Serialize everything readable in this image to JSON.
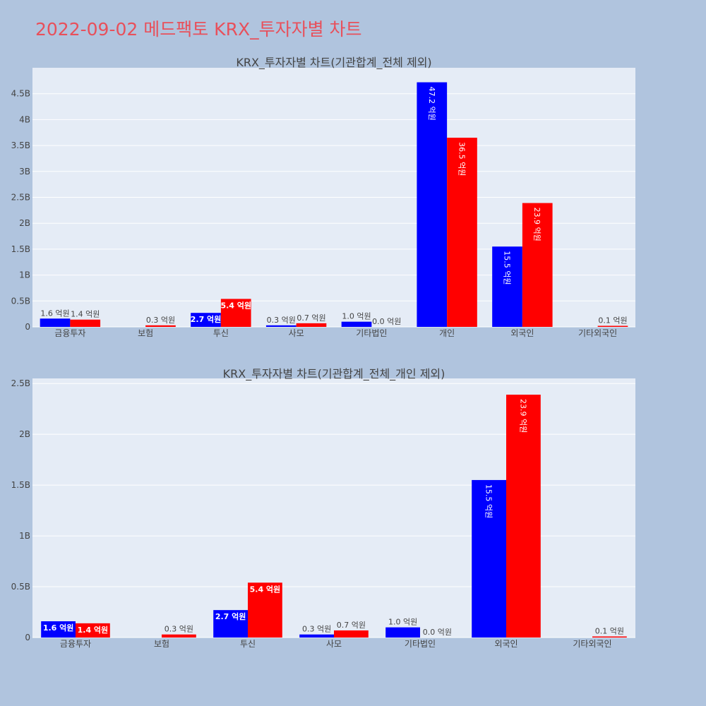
{
  "page": {
    "title": "2022-09-02 메드팩토 KRX_투자자별 차트"
  },
  "colors": {
    "buy": "#0000ff",
    "sell": "#ff0000",
    "plot_bg": "#e5ecf6",
    "page_bg": "#b0c4de",
    "title": "#e8505b"
  },
  "chart_data": [
    {
      "type": "bar",
      "title": "KRX_투자자별 차트(기관합계_전체 제외)",
      "categories": [
        "금융투자",
        "보험",
        "투신",
        "사모",
        "기타법인",
        "개인",
        "외국인",
        "기타외국인"
      ],
      "ylim": [
        0,
        5000000000
      ],
      "yticks": [
        0,
        500000000,
        1000000000,
        1500000000,
        2000000000,
        2500000000,
        3000000000,
        3500000000,
        4000000000,
        4500000000
      ],
      "ytick_labels": [
        "0",
        "0.5B",
        "1B",
        "1.5B",
        "2B",
        "2.5B",
        "3B",
        "3.5B",
        "4B",
        "4.5B"
      ],
      "series": [
        {
          "color": "#0000ff",
          "values": [
            160000000,
            null,
            270000000,
            30000000,
            100000000,
            4720000000,
            1550000000,
            null
          ],
          "labels": [
            "1.6 억원",
            "",
            "2.7 억원",
            "0.3 억원",
            "1.0 억원",
            "47.2 억원",
            "15.5 억원",
            ""
          ]
        },
        {
          "color": "#ff0000",
          "values": [
            140000000,
            30000000,
            540000000,
            70000000,
            0,
            3650000000,
            2390000000,
            10000000
          ],
          "labels": [
            "1.4 억원",
            "0.3 억원",
            "5.4 억원",
            "0.7 억원",
            "0.0 억원",
            "36.5 억원",
            "23.9 억원",
            "0.1 억원"
          ]
        }
      ],
      "grid": true
    },
    {
      "type": "bar",
      "title": "KRX_투자자별 차트(기관합계_전체_개인 제외)",
      "categories": [
        "금융투자",
        "보험",
        "투신",
        "사모",
        "기타법인",
        "외국인",
        "기타외국인"
      ],
      "ylim": [
        0,
        2550000000
      ],
      "yticks": [
        0,
        500000000,
        1000000000,
        1500000000,
        2000000000,
        2500000000
      ],
      "ytick_labels": [
        "0",
        "0.5B",
        "1B",
        "1.5B",
        "2B",
        "2.5B"
      ],
      "series": [
        {
          "color": "#0000ff",
          "values": [
            160000000,
            null,
            270000000,
            30000000,
            100000000,
            1550000000,
            null
          ],
          "labels": [
            "1.6 억원",
            "",
            "2.7 억원",
            "0.3 억원",
            "1.0 억원",
            "15.5 억원",
            ""
          ]
        },
        {
          "color": "#ff0000",
          "values": [
            140000000,
            30000000,
            540000000,
            70000000,
            0,
            2390000000,
            10000000
          ],
          "labels": [
            "1.4 억원",
            "0.3 억원",
            "5.4 억원",
            "0.7 억원",
            "0.0 억원",
            "23.9 억원",
            "0.1 억원"
          ]
        }
      ],
      "grid": true
    }
  ]
}
